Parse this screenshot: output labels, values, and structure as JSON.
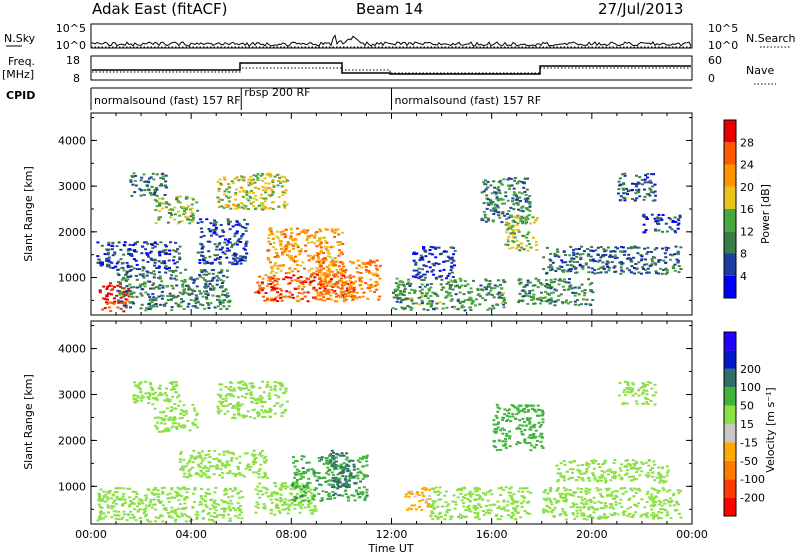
{
  "header": {
    "title": "Adak East (fitACF)",
    "beam": "Beam 14",
    "date": "27/Jul/2013"
  },
  "panels": {
    "nsky": {
      "label": "N.Sky",
      "ticks": [
        "10^5",
        "10^0"
      ]
    },
    "nsearch": {
      "label": "N.Search",
      "ticks": [
        "10^5",
        "10^0"
      ]
    },
    "freq": {
      "label": "Freq.",
      "unit": "[MHz]",
      "ticks": [
        "18",
        "8"
      ]
    },
    "nave": {
      "label": "Nave",
      "ticks": [
        "60",
        "0"
      ]
    },
    "cpid": {
      "label": "CPID"
    }
  },
  "cpid_segments": [
    {
      "label": "normalsound (fast) 157 RF",
      "start": 0,
      "end": 6
    },
    {
      "label": "rbsp 200 RF",
      "start": 6,
      "end": 12
    },
    {
      "label": "normalsound (fast) 157 RF",
      "start": 12,
      "end": 24
    }
  ],
  "colors": {
    "power_scale": [
      "#0000ff",
      "#1c3c9e",
      "#3b7d45",
      "#47a83f",
      "#e7c31e",
      "#ff9400",
      "#ff5a00",
      "#e80000"
    ],
    "velocity_scale": [
      "#ff0000",
      "#ff3c00",
      "#ff7a00",
      "#ffa800",
      "#c8c8c8",
      "#8ae045",
      "#3fb33c",
      "#2f6f66",
      "#0018c8",
      "#2200ff"
    ]
  },
  "chart_data": [
    {
      "type": "heatmap",
      "name": "power",
      "xlabel": "",
      "ylabel": "Slant Range [km]",
      "xlim": [
        0,
        24
      ],
      "ylim": [
        180,
        4600
      ],
      "yticks": [
        1000,
        2000,
        3000,
        4000
      ],
      "colorbar": {
        "label": "Power [dB]",
        "ticks": [
          4,
          8,
          12,
          16,
          20,
          24,
          28
        ],
        "range": [
          0,
          32
        ]
      },
      "regions": [
        {
          "t0": 0.3,
          "t1": 1.5,
          "r0": 280,
          "r1": 900,
          "value": 29
        },
        {
          "t0": 1.0,
          "t1": 5.5,
          "r0": 300,
          "r1": 1200,
          "value": 10
        },
        {
          "t0": 0.2,
          "t1": 3.5,
          "r0": 1200,
          "r1": 1800,
          "value": 6
        },
        {
          "t0": 1.5,
          "t1": 3.0,
          "r0": 2800,
          "r1": 3300,
          "value": 9
        },
        {
          "t0": 2.5,
          "t1": 4.2,
          "r0": 2200,
          "r1": 2800,
          "value": 15
        },
        {
          "t0": 4.2,
          "t1": 6.2,
          "r0": 1300,
          "r1": 2300,
          "value": 6
        },
        {
          "t0": 5.0,
          "t1": 7.8,
          "r0": 2500,
          "r1": 3300,
          "value": 17
        },
        {
          "t0": 6.5,
          "t1": 10.5,
          "r0": 500,
          "r1": 1100,
          "value": 26
        },
        {
          "t0": 7.0,
          "t1": 10.0,
          "r0": 1100,
          "r1": 2100,
          "value": 22
        },
        {
          "t0": 9.0,
          "t1": 11.5,
          "r0": 500,
          "r1": 1400,
          "value": 23
        },
        {
          "t0": 12.0,
          "t1": 16.5,
          "r0": 300,
          "r1": 1000,
          "value": 12
        },
        {
          "t0": 12.8,
          "t1": 14.5,
          "r0": 1000,
          "r1": 1700,
          "value": 5
        },
        {
          "t0": 15.5,
          "t1": 17.5,
          "r0": 2200,
          "r1": 3200,
          "value": 10
        },
        {
          "t0": 16.5,
          "t1": 17.8,
          "r0": 1600,
          "r1": 2400,
          "value": 16
        },
        {
          "t0": 17.0,
          "t1": 20.0,
          "r0": 400,
          "r1": 1000,
          "value": 11
        },
        {
          "t0": 18.0,
          "t1": 23.5,
          "r0": 1100,
          "r1": 1700,
          "value": 8
        },
        {
          "t0": 21.0,
          "t1": 22.5,
          "r0": 2700,
          "r1": 3300,
          "value": 7
        },
        {
          "t0": 22.0,
          "t1": 23.5,
          "r0": 2000,
          "r1": 2400,
          "value": 6
        }
      ]
    },
    {
      "type": "heatmap",
      "name": "velocity",
      "xlabel": "Time UT",
      "ylabel": "Slant Range [km]",
      "xlim": [
        0,
        24
      ],
      "ylim": [
        180,
        4600
      ],
      "yticks": [
        1000,
        2000,
        3000,
        4000
      ],
      "xticks": [
        "00:00",
        "04:00",
        "08:00",
        "12:00",
        "16:00",
        "20:00",
        "00:00"
      ],
      "colorbar": {
        "label": "Velocity [m s⁻¹]",
        "ticks": [
          -200,
          -100,
          -50,
          -15,
          15,
          50,
          100,
          200
        ],
        "display_ticks": [
          "-200",
          "-100",
          "-50",
          "-15",
          "15",
          "50",
          "100",
          "200"
        ]
      },
      "regions": [
        {
          "t0": 0.2,
          "t1": 6.0,
          "r0": 250,
          "r1": 1000,
          "value": 0
        },
        {
          "t0": 1.5,
          "t1": 3.5,
          "r0": 2800,
          "r1": 3300,
          "value": 0
        },
        {
          "t0": 2.5,
          "t1": 4.2,
          "r0": 2200,
          "r1": 2800,
          "value": 0
        },
        {
          "t0": 5.0,
          "t1": 7.8,
          "r0": 2500,
          "r1": 3300,
          "value": 0
        },
        {
          "t0": 3.5,
          "t1": 7.0,
          "r0": 1200,
          "r1": 1800,
          "value": 0
        },
        {
          "t0": 6.5,
          "t1": 9.0,
          "r0": 400,
          "r1": 1100,
          "value": 0
        },
        {
          "t0": 8.0,
          "t1": 11.0,
          "r0": 700,
          "r1": 1700,
          "value": 40
        },
        {
          "t0": 9.5,
          "t1": 10.5,
          "r0": 1000,
          "r1": 1800,
          "value": 80
        },
        {
          "t0": 12.5,
          "t1": 13.5,
          "r0": 500,
          "r1": 1000,
          "value": -60
        },
        {
          "t0": 13.5,
          "t1": 17.5,
          "r0": 300,
          "r1": 1000,
          "value": 0
        },
        {
          "t0": 16.0,
          "t1": 18.0,
          "r0": 1800,
          "r1": 2800,
          "value": 30
        },
        {
          "t0": 18.0,
          "t1": 23.5,
          "r0": 300,
          "r1": 1000,
          "value": 0
        },
        {
          "t0": 18.5,
          "t1": 23.0,
          "r0": 1100,
          "r1": 1600,
          "value": 0
        },
        {
          "t0": 21.0,
          "t1": 22.5,
          "r0": 2800,
          "r1": 3300,
          "value": 0
        }
      ]
    }
  ]
}
